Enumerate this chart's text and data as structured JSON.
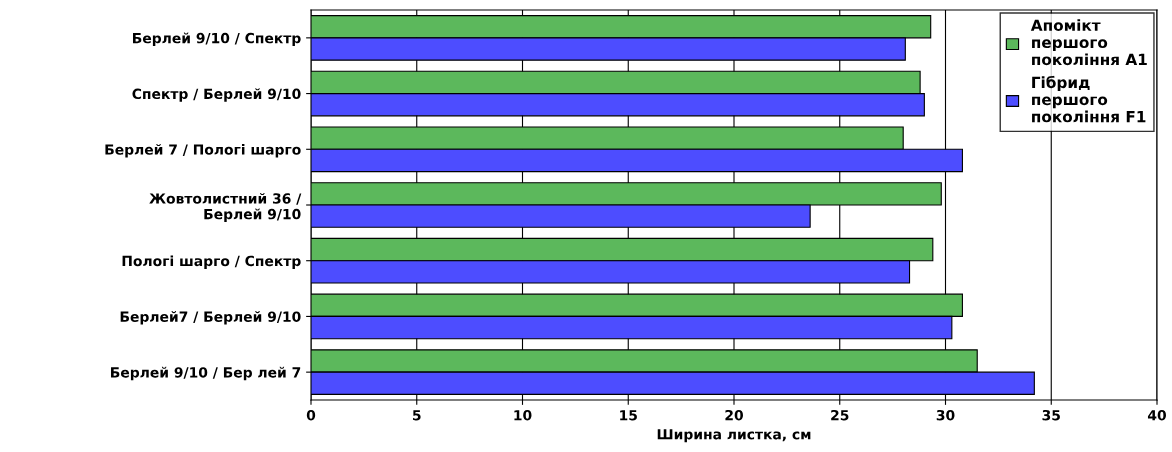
{
  "chart_data": {
    "type": "bar",
    "orientation": "horizontal",
    "xlabel": "Ширина листка, см",
    "categories": [
      "Берлей 9/10 / Спектр",
      "Спектр / Берлей 9/10",
      "Берлей 7 / Пологі шарго",
      "Жовтолистний 36 /\nБерлей 9/10",
      "Пологі шарго / Спектр",
      "Берлей7 / Берлей 9/10",
      "Берлей 9/10 / Бер лей 7"
    ],
    "series": [
      {
        "name": "Апомікт\nпершого\nпокоління A1",
        "color": "#5cb85c",
        "values": [
          29.3,
          28.8,
          28.0,
          29.8,
          29.4,
          30.8,
          31.5
        ]
      },
      {
        "name": "Гібрид\nпершого\nпокоління F1",
        "color": "#4d4dff",
        "values": [
          28.1,
          29.0,
          30.8,
          23.6,
          28.3,
          30.3,
          34.2
        ]
      }
    ],
    "xlim": [
      0,
      40
    ],
    "xticks": [
      0,
      5,
      10,
      15,
      20,
      25,
      30,
      35,
      40
    ],
    "grid": "x",
    "legend": "top right"
  }
}
